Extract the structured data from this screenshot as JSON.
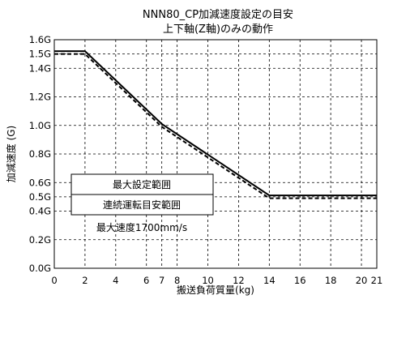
{
  "chart_data": {
    "type": "line",
    "title": "NNN80_CP加減速度設定の目安",
    "subtitle": "上下軸(Z軸)のみの動作",
    "xlabel": "搬送負荷質量(kg)",
    "ylabel": "加減速度 (G)",
    "xlim": [
      0,
      21
    ],
    "ylim": [
      0,
      1.6
    ],
    "x_ticks": [
      0,
      2,
      4,
      6,
      7,
      8,
      10,
      12,
      14,
      16,
      18,
      20,
      21
    ],
    "x_tick_labels": [
      "0",
      "2",
      "4",
      "6",
      "7",
      "8",
      "10",
      "12",
      "14",
      "16",
      "18",
      "20",
      "21"
    ],
    "y_ticks": [
      0,
      0.2,
      0.4,
      0.5,
      0.6,
      0.8,
      1.0,
      1.2,
      1.4,
      1.5,
      1.6
    ],
    "y_tick_labels": [
      "0.0G",
      "0.2G",
      "0.4G",
      "0.5G",
      "0.6G",
      "0.8G",
      "1.0G",
      "1.2G",
      "1.4G",
      "1.5G",
      "1.6G"
    ],
    "grid": true,
    "series": [
      {
        "name": "最大設定範囲",
        "style": "solid",
        "x": [
          0,
          2,
          7,
          14,
          21
        ],
        "y": [
          1.52,
          1.52,
          1.01,
          0.51,
          0.51
        ]
      },
      {
        "name": "連続運転目安範囲",
        "style": "dashed",
        "x": [
          0,
          2,
          7,
          14,
          21
        ],
        "y": [
          1.5,
          1.5,
          0.99,
          0.49,
          0.49
        ]
      }
    ],
    "legend_position": "center-left",
    "annotation": "最大速度1700mm/s"
  }
}
